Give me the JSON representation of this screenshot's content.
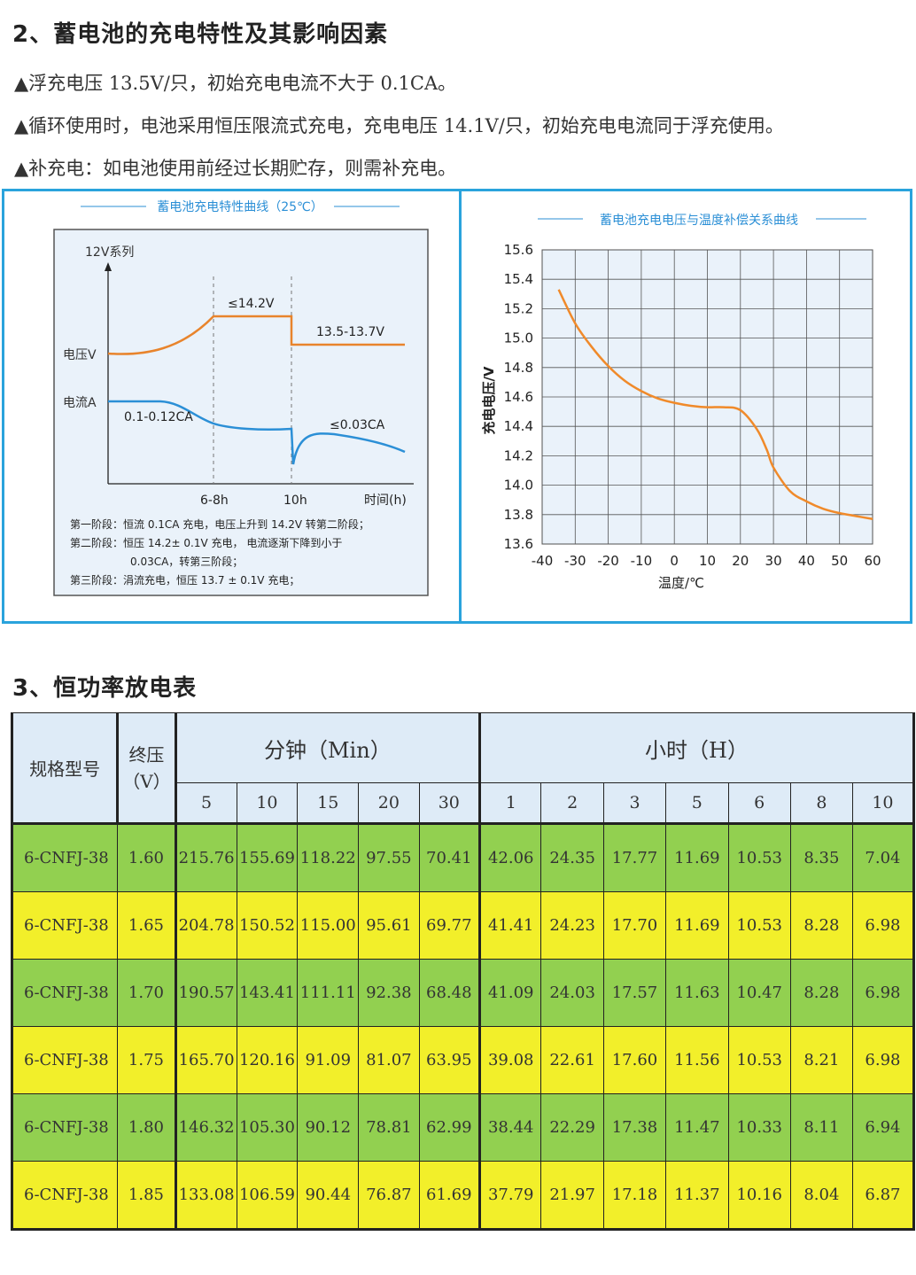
{
  "section2": {
    "title": "2、蓄电池的充电特性及其影响因素",
    "bullets": [
      "▲浮充电压 13.5V/只，初始充电电流不大于 0.1CA。",
      "▲循环使用时，电池采用恒压限流式充电，充电电压 14.1V/只，初始充电电流同于浮充使用。",
      "▲补充电：如电池使用前经过长期贮存，则需补充电。"
    ]
  },
  "fig_left": {
    "title": "蓄电池充电特性曲线（25℃）",
    "series_label": "12V系列",
    "voltage_label": "电压V",
    "current_label": "电流A",
    "v_peak": "≤14.2V",
    "v_float": "13.5-13.7V",
    "i_start": "0.1-0.12CA",
    "i_end": "≤0.03CA",
    "x_t1": "6-8h",
    "x_t2": "10h",
    "x_axis": "时间(h)",
    "notes": [
      "第一阶段：恒流 0.1CA 充电，电压上升到 14.2V 转第二阶段；",
      "第二阶段：恒压 14.2± 0.1V 充电，  电流逐渐下降到小于",
      "0.03CA，转第三阶段；",
      "第三阶段：涓流充电，恒压 13.7 ± 0.1V 充电；"
    ],
    "colors": {
      "voltage": "#e8842c",
      "current": "#2b8fd6"
    }
  },
  "fig_right": {
    "title": "蓄电池充电电压与温度补偿关系曲线",
    "ylabel": "充电电压/V",
    "xlabel": "温度/℃",
    "line_color": "#f08a2a"
  },
  "chart_data": {
    "type": "line",
    "title": "蓄电池充电电压与温度补偿关系曲线",
    "xlabel": "温度/℃",
    "ylabel": "充电电压/V",
    "xlim": [
      -40,
      60
    ],
    "ylim": [
      13.6,
      15.6
    ],
    "x_ticks": [
      "-40",
      "-30",
      "-20",
      "-10",
      "0",
      "10",
      "20",
      "30",
      "40",
      "50",
      "60"
    ],
    "y_ticks": [
      "13.6",
      "13.8",
      "14.0",
      "14.2",
      "14.4",
      "14.6",
      "14.8",
      "15.0",
      "15.2",
      "15.4",
      "15.6"
    ],
    "grid": true,
    "series": [
      {
        "x": [
          -35,
          -30,
          -25,
          -20,
          -15,
          -10,
          -5,
          0,
          5,
          10,
          15,
          20,
          25,
          28,
          30,
          35,
          40,
          45,
          50,
          55,
          60
        ],
        "y": [
          15.33,
          15.1,
          14.94,
          14.81,
          14.71,
          14.64,
          14.59,
          14.56,
          14.54,
          14.53,
          14.53,
          14.51,
          14.38,
          14.24,
          14.12,
          13.96,
          13.89,
          13.84,
          13.81,
          13.79,
          13.77
        ]
      }
    ]
  },
  "section3": {
    "title": "3、恒功率放电表",
    "header": {
      "model": "规格型号",
      "end_voltage": "终压（V）",
      "minutes": "分钟（Min）",
      "hours": "小时（H）",
      "min_cols": [
        "5",
        "10",
        "15",
        "20",
        "30"
      ],
      "hour_cols": [
        "1",
        "2",
        "3",
        "5",
        "6",
        "8",
        "10"
      ]
    },
    "rows": [
      {
        "model": "6-CNFJ-38",
        "v": "1.60",
        "vals": [
          "215.76",
          "155.69",
          "118.22",
          "97.55",
          "70.41",
          "42.06",
          "24.35",
          "17.77",
          "11.69",
          "10.53",
          "8.35",
          "7.04"
        ]
      },
      {
        "model": "6-CNFJ-38",
        "v": "1.65",
        "vals": [
          "204.78",
          "150.52",
          "115.00",
          "95.61",
          "69.77",
          "41.41",
          "24.23",
          "17.70",
          "11.69",
          "10.53",
          "8.28",
          "6.98"
        ]
      },
      {
        "model": "6-CNFJ-38",
        "v": "1.70",
        "vals": [
          "190.57",
          "143.41",
          "111.11",
          "92.38",
          "68.48",
          "41.09",
          "24.03",
          "17.57",
          "11.63",
          "10.47",
          "8.28",
          "6.98"
        ]
      },
      {
        "model": "6-CNFJ-38",
        "v": "1.75",
        "vals": [
          "165.70",
          "120.16",
          "91.09",
          "81.07",
          "63.95",
          "39.08",
          "22.61",
          "17.60",
          "11.56",
          "10.53",
          "8.21",
          "6.98"
        ]
      },
      {
        "model": "6-CNFJ-38",
        "v": "1.80",
        "vals": [
          "146.32",
          "105.30",
          "90.12",
          "78.81",
          "62.99",
          "38.44",
          "22.29",
          "17.38",
          "11.47",
          "10.33",
          "8.11",
          "6.94"
        ]
      },
      {
        "model": "6-CNFJ-38",
        "v": "1.85",
        "vals": [
          "133.08",
          "106.59",
          "90.44",
          "76.87",
          "61.69",
          "37.79",
          "21.97",
          "17.18",
          "11.37",
          "10.16",
          "8.04",
          "6.87"
        ]
      }
    ]
  }
}
